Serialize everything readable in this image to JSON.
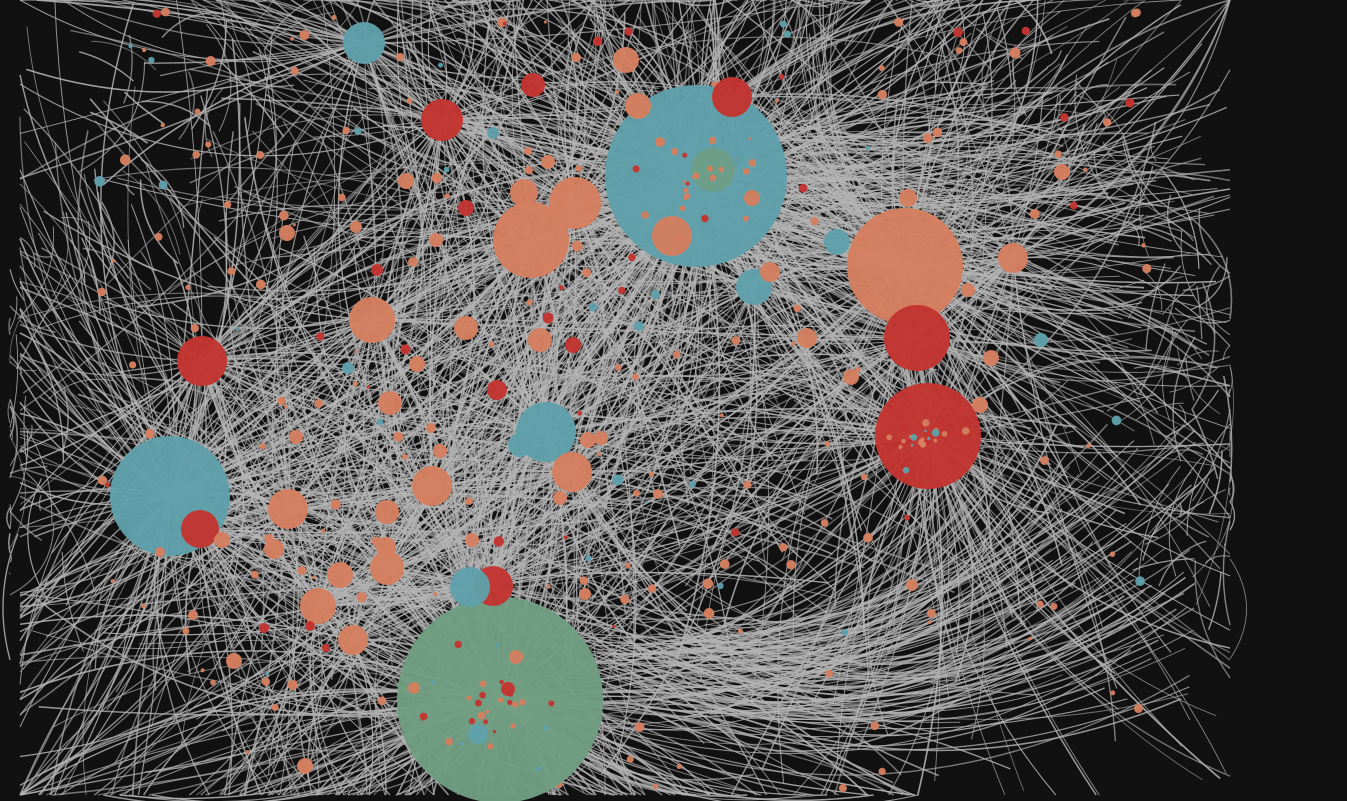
{
  "colors": {
    "background": "#111111",
    "edge": "#b4b4b4",
    "node_teal": "#5fa0aa",
    "node_salmon": "#d47f5f",
    "node_red": "#c23531",
    "node_green": "#6f9e82"
  },
  "graph": {
    "layout": "force-directed",
    "edge_style": "curved",
    "labels_visible": false
  }
}
